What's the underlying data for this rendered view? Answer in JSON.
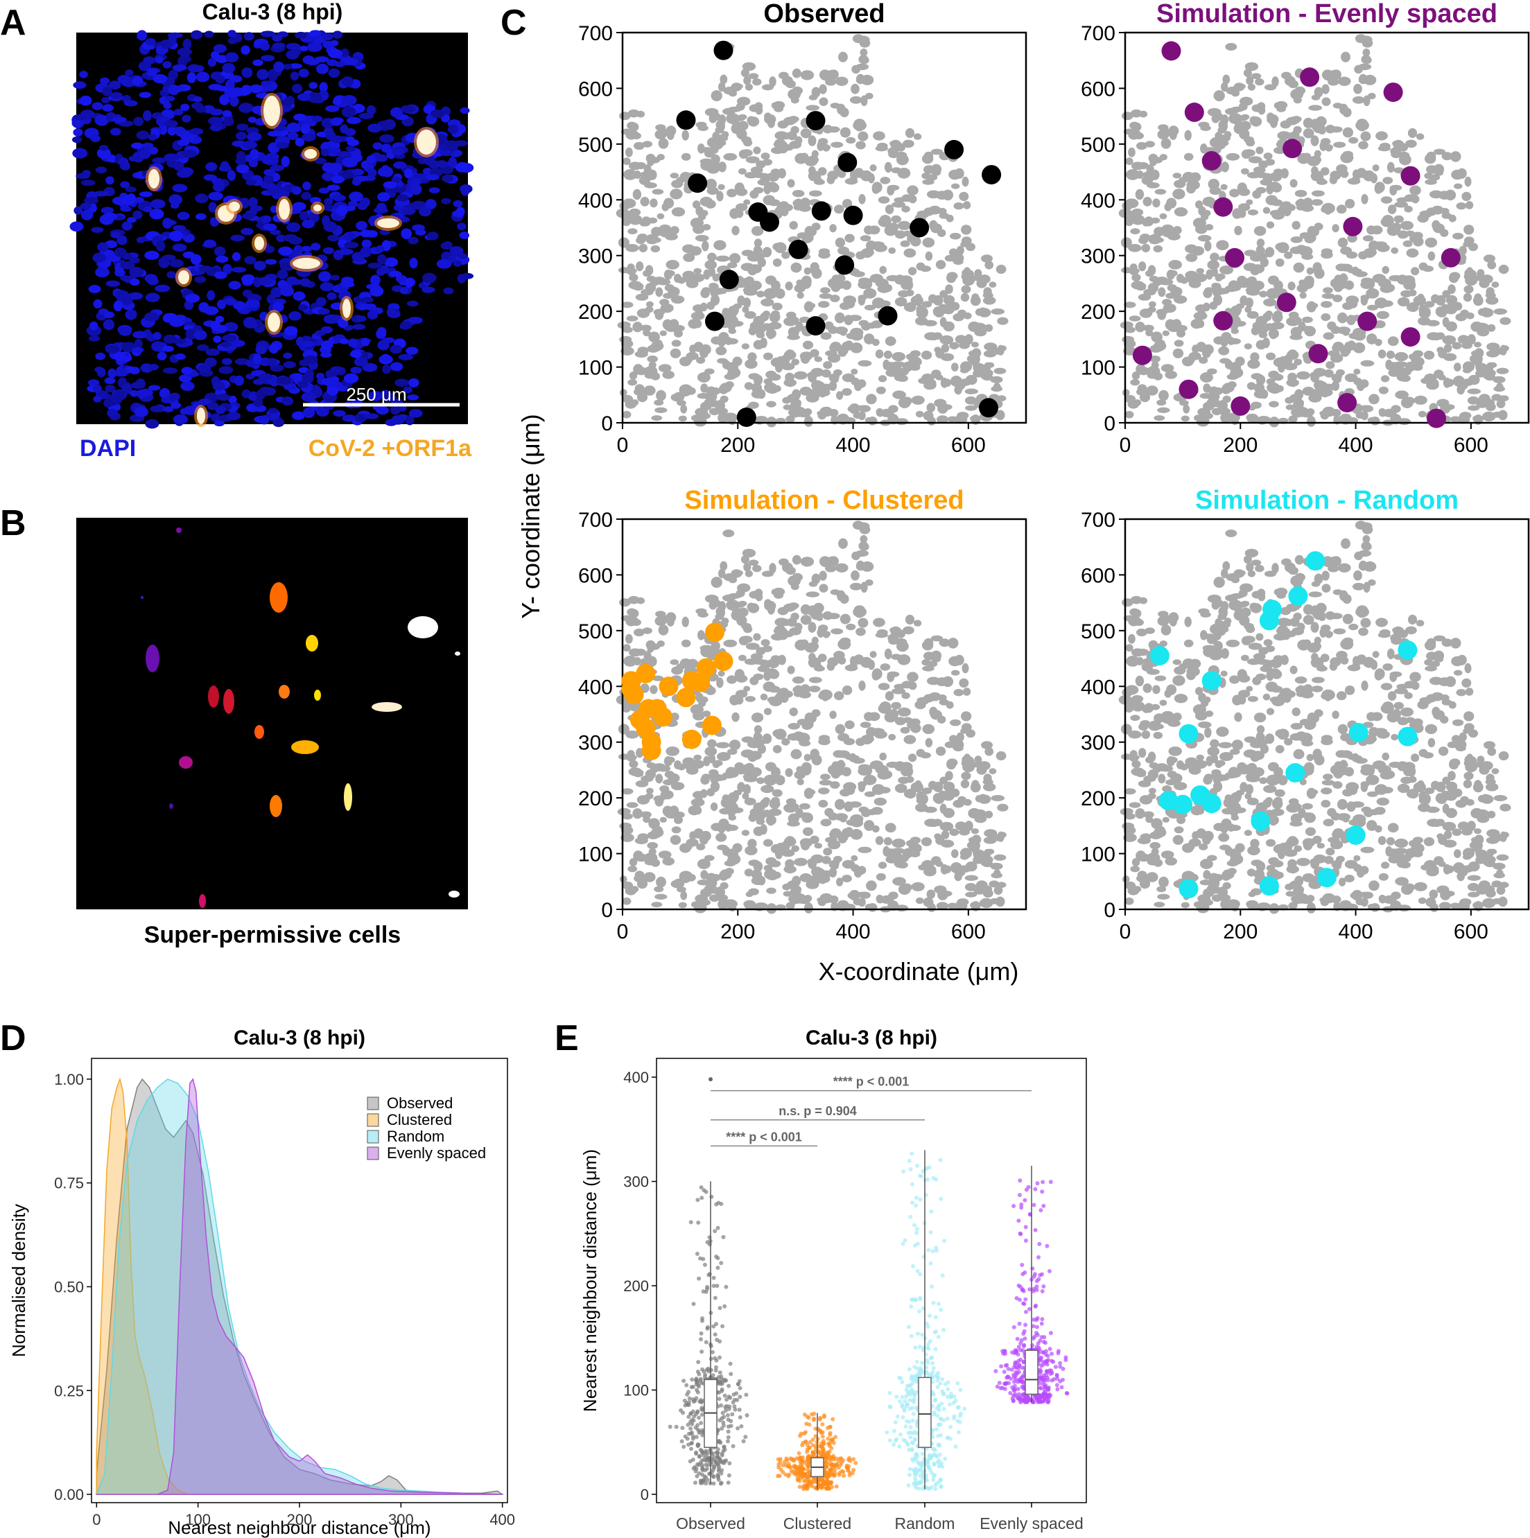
{
  "panels": {
    "A": {
      "letter": "A",
      "title": "Calu-3 (8 hpi)",
      "scalebar_label": "250 μm",
      "legend_left": "DAPI",
      "legend_right": "CoV-2 +ORF1a",
      "colors": {
        "dapi": "#1a1ae0",
        "orf1a": "#f5a623",
        "background": "#000000"
      }
    },
    "B": {
      "letter": "B",
      "caption": "Super-permissive cells",
      "colors": {
        "background": "#000000"
      }
    },
    "C": {
      "letter": "C",
      "xlabel": "X-coordinate (μm)",
      "ylabel": "Y- coordinate (μm)",
      "subplots": [
        {
          "title": "Observed",
          "color": "#000000"
        },
        {
          "title": "Simulation - Evenly spaced",
          "color": "#7d0f7d"
        },
        {
          "title": "Simulation - Clustered",
          "color": "#ff9f00"
        },
        {
          "title": "Simulation - Random",
          "color": "#19e6f0"
        }
      ]
    },
    "D": {
      "letter": "D",
      "title": "Calu-3 (8 hpi)"
    },
    "E": {
      "letter": "E",
      "title": "Calu-3 (8 hpi)"
    }
  },
  "chart_data": [
    {
      "type": "scatter",
      "panel": "C-observed",
      "title": "Observed",
      "xlim": [
        0,
        700
      ],
      "ylim": [
        0,
        700
      ],
      "xticks": [
        0,
        200,
        400,
        600
      ],
      "yticks": [
        0,
        100,
        200,
        300,
        400,
        500,
        600,
        700
      ],
      "color": "#000000",
      "points": [
        [
          175,
          668
        ],
        [
          110,
          543
        ],
        [
          335,
          542
        ],
        [
          390,
          467
        ],
        [
          575,
          490
        ],
        [
          640,
          445
        ],
        [
          130,
          430
        ],
        [
          235,
          378
        ],
        [
          255,
          360
        ],
        [
          345,
          380
        ],
        [
          400,
          372
        ],
        [
          515,
          350
        ],
        [
          305,
          311
        ],
        [
          385,
          283
        ],
        [
          185,
          257
        ],
        [
          160,
          182
        ],
        [
          335,
          174
        ],
        [
          460,
          192
        ],
        [
          215,
          10
        ],
        [
          635,
          27
        ]
      ]
    },
    {
      "type": "scatter",
      "panel": "C-evenly-spaced",
      "title": "Simulation - Evenly spaced",
      "xlim": [
        0,
        700
      ],
      "ylim": [
        0,
        700
      ],
      "xticks": [
        0,
        200,
        400,
        600
      ],
      "yticks": [
        0,
        100,
        200,
        300,
        400,
        500,
        600,
        700
      ],
      "color": "#7d0f7d",
      "points": [
        [
          80,
          667
        ],
        [
          320,
          620
        ],
        [
          465,
          593
        ],
        [
          120,
          557
        ],
        [
          150,
          470
        ],
        [
          290,
          492
        ],
        [
          495,
          443
        ],
        [
          170,
          387
        ],
        [
          395,
          352
        ],
        [
          190,
          296
        ],
        [
          565,
          296
        ],
        [
          280,
          216
        ],
        [
          170,
          183
        ],
        [
          420,
          182
        ],
        [
          495,
          154
        ],
        [
          335,
          124
        ],
        [
          30,
          121
        ],
        [
          110,
          60
        ],
        [
          385,
          36
        ],
        [
          200,
          30
        ],
        [
          540,
          8
        ]
      ]
    },
    {
      "type": "scatter",
      "panel": "C-clustered",
      "title": "Simulation - Clustered",
      "xlim": [
        0,
        700
      ],
      "ylim": [
        0,
        700
      ],
      "xticks": [
        0,
        200,
        400,
        600
      ],
      "yticks": [
        0,
        100,
        200,
        300,
        400,
        500,
        600,
        700
      ],
      "color": "#ff9f00",
      "points": [
        [
          160,
          497
        ],
        [
          175,
          445
        ],
        [
          40,
          423
        ],
        [
          145,
          433
        ],
        [
          15,
          410
        ],
        [
          120,
          410
        ],
        [
          80,
          400
        ],
        [
          135,
          407
        ],
        [
          20,
          385
        ],
        [
          110,
          380
        ],
        [
          45,
          360
        ],
        [
          60,
          360
        ],
        [
          30,
          340
        ],
        [
          155,
          330
        ],
        [
          40,
          325
        ],
        [
          50,
          300
        ],
        [
          120,
          305
        ],
        [
          50,
          285
        ],
        [
          15,
          395
        ],
        [
          70,
          345
        ]
      ]
    },
    {
      "type": "scatter",
      "panel": "C-random",
      "title": "Simulation - Random",
      "xlim": [
        0,
        700
      ],
      "ylim": [
        0,
        700
      ],
      "xticks": [
        0,
        200,
        400,
        600
      ],
      "yticks": [
        0,
        100,
        200,
        300,
        400,
        500,
        600,
        700
      ],
      "color": "#19e6f0",
      "points": [
        [
          330,
          625
        ],
        [
          300,
          562
        ],
        [
          255,
          538
        ],
        [
          250,
          518
        ],
        [
          60,
          455
        ],
        [
          150,
          410
        ],
        [
          490,
          465
        ],
        [
          110,
          315
        ],
        [
          405,
          317
        ],
        [
          490,
          310
        ],
        [
          295,
          245
        ],
        [
          75,
          195
        ],
        [
          130,
          205
        ],
        [
          100,
          188
        ],
        [
          150,
          190
        ],
        [
          235,
          158
        ],
        [
          400,
          133
        ],
        [
          350,
          57
        ],
        [
          250,
          42
        ],
        [
          110,
          37
        ]
      ]
    },
    {
      "type": "area",
      "panel": "D",
      "title": "Calu-3 (8 hpi)",
      "xlabel": "Nearest neighbour distance (μm)",
      "ylabel": "Normalised density",
      "xlim": [
        -5,
        405
      ],
      "ylim": [
        -0.02,
        1.05
      ],
      "xticks": [
        0,
        100,
        200,
        300,
        400
      ],
      "yticks": [
        0.0,
        0.25,
        0.5,
        0.75,
        1.0
      ],
      "ytick_labels": [
        "0.00",
        "0.25",
        "0.50",
        "0.75",
        "1.00"
      ],
      "legend_position": "top-right",
      "series": [
        {
          "name": "Observed",
          "color": "#808080",
          "points": [
            [
              0,
              0.05
            ],
            [
              10,
              0.3
            ],
            [
              20,
              0.62
            ],
            [
              30,
              0.88
            ],
            [
              40,
              0.98
            ],
            [
              45,
              1.0
            ],
            [
              52,
              0.98
            ],
            [
              60,
              0.93
            ],
            [
              68,
              0.88
            ],
            [
              76,
              0.86
            ],
            [
              82,
              0.88
            ],
            [
              88,
              0.9
            ],
            [
              95,
              0.87
            ],
            [
              105,
              0.77
            ],
            [
              115,
              0.62
            ],
            [
              125,
              0.48
            ],
            [
              135,
              0.37
            ],
            [
              145,
              0.29
            ],
            [
              155,
              0.23
            ],
            [
              170,
              0.15
            ],
            [
              185,
              0.09
            ],
            [
              200,
              0.06
            ],
            [
              215,
              0.05
            ],
            [
              230,
              0.035
            ],
            [
              250,
              0.025
            ],
            [
              270,
              0.02
            ],
            [
              280,
              0.03
            ],
            [
              288,
              0.045
            ],
            [
              296,
              0.035
            ],
            [
              305,
              0.01
            ],
            [
              320,
              0.005
            ],
            [
              350,
              0.003
            ],
            [
              380,
              0.003
            ],
            [
              395,
              0.008
            ],
            [
              400,
              0.0
            ]
          ]
        },
        {
          "name": "Clustered",
          "color": "#f5a623",
          "points": [
            [
              0,
              0.1
            ],
            [
              5,
              0.45
            ],
            [
              10,
              0.78
            ],
            [
              15,
              0.93
            ],
            [
              20,
              0.98
            ],
            [
              23,
              1.0
            ],
            [
              26,
              0.97
            ],
            [
              30,
              0.85
            ],
            [
              34,
              0.55
            ],
            [
              38,
              0.38
            ],
            [
              42,
              0.33
            ],
            [
              48,
              0.28
            ],
            [
              55,
              0.2
            ],
            [
              62,
              0.1
            ],
            [
              70,
              0.04
            ],
            [
              80,
              0.01
            ],
            [
              90,
              0.0
            ],
            [
              400,
              0.0
            ]
          ]
        },
        {
          "name": "Random",
          "color": "#5fd8e8",
          "points": [
            [
              0,
              0.0
            ],
            [
              8,
              0.05
            ],
            [
              15,
              0.3
            ],
            [
              22,
              0.6
            ],
            [
              30,
              0.8
            ],
            [
              40,
              0.9
            ],
            [
              50,
              0.95
            ],
            [
              60,
              0.98
            ],
            [
              70,
              1.0
            ],
            [
              80,
              0.99
            ],
            [
              90,
              0.96
            ],
            [
              100,
              0.9
            ],
            [
              110,
              0.78
            ],
            [
              120,
              0.62
            ],
            [
              130,
              0.45
            ],
            [
              140,
              0.34
            ],
            [
              150,
              0.27
            ],
            [
              160,
              0.21
            ],
            [
              175,
              0.15
            ],
            [
              190,
              0.11
            ],
            [
              205,
              0.08
            ],
            [
              220,
              0.065
            ],
            [
              235,
              0.06
            ],
            [
              250,
              0.045
            ],
            [
              265,
              0.025
            ],
            [
              280,
              0.015
            ],
            [
              300,
              0.01
            ],
            [
              320,
              0.008
            ],
            [
              340,
              0.005
            ],
            [
              370,
              0.002
            ],
            [
              400,
              0.0
            ]
          ]
        },
        {
          "name": "Evenly spaced",
          "color": "#b04fd8",
          "points": [
            [
              0,
              0.0
            ],
            [
              60,
              0.0
            ],
            [
              70,
              0.01
            ],
            [
              76,
              0.1
            ],
            [
              82,
              0.5
            ],
            [
              88,
              0.85
            ],
            [
              92,
              0.99
            ],
            [
              95,
              1.0
            ],
            [
              98,
              0.97
            ],
            [
              102,
              0.82
            ],
            [
              108,
              0.62
            ],
            [
              114,
              0.48
            ],
            [
              120,
              0.42
            ],
            [
              128,
              0.38
            ],
            [
              135,
              0.36
            ],
            [
              145,
              0.33
            ],
            [
              155,
              0.27
            ],
            [
              165,
              0.19
            ],
            [
              175,
              0.13
            ],
            [
              190,
              0.09
            ],
            [
              200,
              0.08
            ],
            [
              208,
              0.095
            ],
            [
              215,
              0.08
            ],
            [
              225,
              0.05
            ],
            [
              240,
              0.04
            ],
            [
              255,
              0.025
            ],
            [
              270,
              0.015
            ],
            [
              290,
              0.008
            ],
            [
              320,
              0.005
            ],
            [
              360,
              0.003
            ],
            [
              400,
              0.0
            ]
          ]
        }
      ]
    },
    {
      "type": "box",
      "panel": "E",
      "title": "Calu-3 (8 hpi)",
      "ylabel": "Nearest neighbour distance (μm)",
      "ylim": [
        -8,
        418
      ],
      "yticks": [
        0,
        100,
        200,
        300,
        400
      ],
      "categories": [
        "Observed",
        "Clustered",
        "Random",
        "Evenly spaced"
      ],
      "colors": [
        "#7f7f7f",
        "#ff8c1a",
        "#a6ecf7",
        "#b84bff"
      ],
      "boxes": [
        {
          "whisker_low": 10,
          "q1": 45,
          "median": 78,
          "q3": 110,
          "whisker_high": 300,
          "max_outlier": 398
        },
        {
          "whisker_low": 5,
          "q1": 17,
          "median": 26,
          "q3": 35,
          "whisker_high": 78
        },
        {
          "whisker_low": 5,
          "q1": 45,
          "median": 77,
          "q3": 112,
          "whisker_high": 330
        },
        {
          "whisker_low": 88,
          "q1": 96,
          "median": 110,
          "q3": 138,
          "whisker_high": 315
        }
      ],
      "annotations": [
        {
          "label": "**** p < 0.001",
          "from": 0,
          "to": 3,
          "y": 387
        },
        {
          "label": "n.s. p = 0.904",
          "from": 0,
          "to": 2,
          "y": 359
        },
        {
          "label": "**** p < 0.001",
          "from": 0,
          "to": 1,
          "y": 334
        }
      ]
    }
  ]
}
